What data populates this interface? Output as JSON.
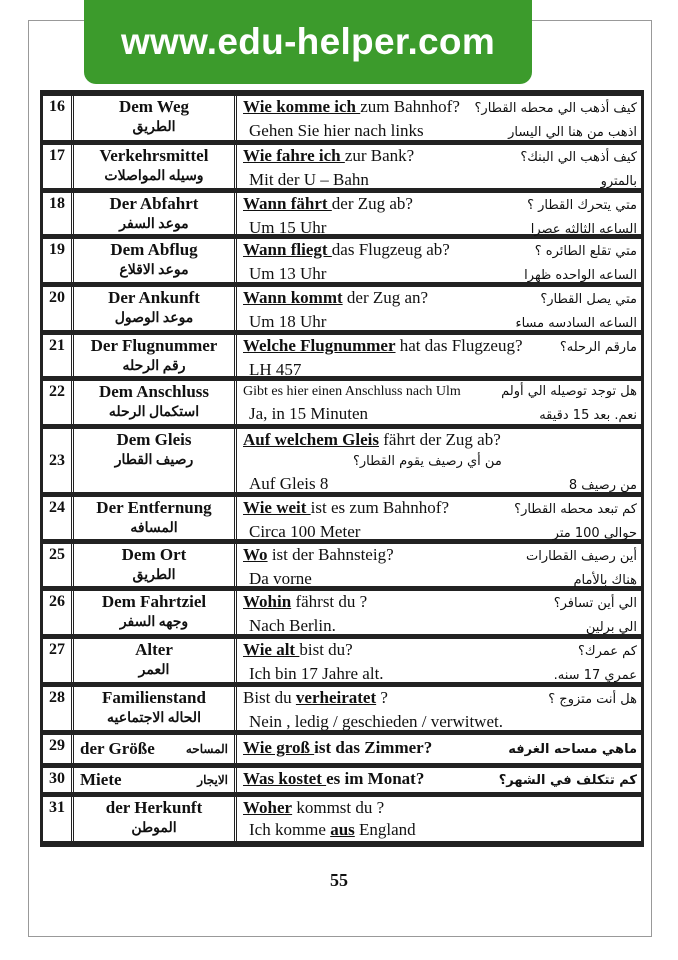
{
  "banner": {
    "text": "www.edu-helper.com",
    "color": "#3c9b2c"
  },
  "page_number": "55",
  "rows": [
    {
      "num": "16",
      "term_de": "Dem Weg",
      "term_ar": "الطريق",
      "q_pre": "",
      "q_bold": "Wie komme ich ",
      "q_post": "zum Bahnhof?",
      "q_ar": "كيف أذهب الي محطه القطار؟",
      "a_pre": "Gehen Sie hier nach links",
      "a_bold": "",
      "a_post": "",
      "a_ar": "اذهب من هنا الي اليسار"
    },
    {
      "num": "17",
      "term_de": "Verkehrsmittel",
      "term_ar": "وسيله المواصلات",
      "q_pre": "",
      "q_bold": "Wie fahre ich ",
      "q_post": "zur Bank?",
      "q_ar": "كيف أذهب الي البنك؟",
      "a_pre": "Mit der U – Bahn",
      "a_bold": "",
      "a_post": "",
      "a_ar": "بالمترو"
    },
    {
      "num": "18",
      "term_de": "Der Abfahrt",
      "term_ar": "موعد السفر",
      "q_pre": "",
      "q_bold": "Wann fährt ",
      "q_post": "der Zug ab?",
      "q_ar": "متي يتحرك القطار ؟",
      "a_pre": "Um 15 Uhr",
      "a_bold": "",
      "a_post": "",
      "a_ar": "الساعه الثالثه عصرا"
    },
    {
      "num": "19",
      "term_de": "Dem Abflug",
      "term_ar": "موعد الاقلاع",
      "q_pre": "",
      "q_bold": "Wann fliegt ",
      "q_post": "das Flugzeug ab?",
      "q_ar": "متي تقلع الطائره ؟",
      "a_pre": "Um 13 Uhr",
      "a_bold": "",
      "a_post": "",
      "a_ar": "الساعه الواحده ظهرا"
    },
    {
      "num": "20",
      "term_de": "Der Ankunft",
      "term_ar": "موعد الوصول",
      "q_pre": "",
      "q_bold": "Wann kommt",
      "q_post": " der Zug an?",
      "q_ar": "متي يصل القطار؟",
      "a_pre": "Um 18 Uhr",
      "a_bold": "",
      "a_post": "",
      "a_ar": "الساعه السادسه مساء"
    },
    {
      "num": "21",
      "term_de": "Der Flugnummer",
      "term_ar": "رقم الرحله",
      "q_pre": "",
      "q_bold": "Welche Flugnummer",
      "q_post": " hat das Flugzeug?",
      "q_ar": "مارقم الرحله؟",
      "a_pre": "LH 457",
      "a_bold": "",
      "a_post": "",
      "a_ar": ""
    },
    {
      "num": "22",
      "term_de": "Dem Anschluss",
      "term_ar": "استكمال الرحله",
      "q_pre": "Gibt es hier einen Anschluss nach Ulm",
      "q_bold": "",
      "q_post": "",
      "q_ar": "هل توجد توصيله الي أولم",
      "a_pre": "Ja, in 15 Minuten",
      "a_bold": "",
      "a_post": "",
      "a_ar": "نعم. بعد 15 دقيقه",
      "small": true
    },
    {
      "num": "23",
      "term_de": "Dem Gleis",
      "term_ar": "رصيف القطار",
      "q_pre": "",
      "q_bold": "Auf welchem Gleis",
      "q_post": " fährt der Zug ab?",
      "q_ar": "من أي رصيف يقوم القطار؟",
      "a_pre": "Auf Gleis 8",
      "a_bold": "",
      "a_post": "",
      "a_ar": "من رصيف 8",
      "ar_below": true
    },
    {
      "num": "24",
      "term_de": "Der Entfernung",
      "term_ar": "المسافه",
      "q_pre": "",
      "q_bold": "Wie weit ",
      "q_post": "ist es zum Bahnhof?",
      "q_ar": "كم تبعد محطه القطار؟",
      "a_pre": "Circa 100 Meter",
      "a_bold": "",
      "a_post": "",
      "a_ar": "حوالي 100 متر"
    },
    {
      "num": "25",
      "term_de": "Dem Ort",
      "term_ar": "الطريق",
      "q_pre": "",
      "q_bold": "Wo",
      "q_post": " ist der Bahnsteig?",
      "q_ar": "أين رصيف القطارات",
      "a_pre": "Da vorne",
      "a_bold": "",
      "a_post": "",
      "a_ar": "هناك بالأمام"
    },
    {
      "num": "26",
      "term_de": "Dem Fahrtziel",
      "term_ar": "وجهه السفر",
      "q_pre": "",
      "q_bold": "Wohin",
      "q_post": " fährst du ?",
      "q_ar": "الي أين تسافر؟",
      "a_pre": "Nach Berlin.",
      "a_bold": "",
      "a_post": "",
      "a_ar": "الي برلين"
    },
    {
      "num": "27",
      "term_de": "Alter",
      "term_ar": "العمر",
      "q_pre": "",
      "q_bold": "Wie alt ",
      "q_post": "bist du?",
      "q_ar": "كم عمرك؟",
      "a_pre": "Ich bin 17 Jahre alt.",
      "a_bold": "",
      "a_post": "",
      "a_ar": "عمري 17 سنه."
    },
    {
      "num": "28",
      "term_de": "Familienstand",
      "term_ar": "الحاله الاجتماعيه",
      "q_pre": "Bist du ",
      "q_bold": "verheiratet",
      "q_post": " ?",
      "q_ar": "هل أنت متزوج ؟",
      "a_pre": "Nein , ledig  / geschieden / verwitwet.",
      "a_bold": "",
      "a_post": "",
      "a_ar": ""
    },
    {
      "num": "29",
      "term_de": "der Größe",
      "term_ar": "المساحه",
      "q_pre": "",
      "q_bold": "Wie groß ",
      "q_post": "ist das Zimmer?",
      "q_ar": "ماهي مساحه الغرفه",
      "single": true
    },
    {
      "num": "30",
      "term_de": "Miete",
      "term_ar": "الايجار",
      "q_pre": "",
      "q_bold": "Was kostet ",
      "q_post": "es im Monat?",
      "q_ar": "كم تتكلف في الشهر؟",
      "single": true
    },
    {
      "num": "31",
      "term_de": "der Herkunft",
      "term_ar": "الموطن",
      "q_pre": "",
      "q_bold": "Woher",
      "q_post": " kommst du ?",
      "q_ar": "",
      "a_pre": "Ich komme ",
      "a_bold": "aus",
      "a_post": " England",
      "a_ar": ""
    }
  ]
}
